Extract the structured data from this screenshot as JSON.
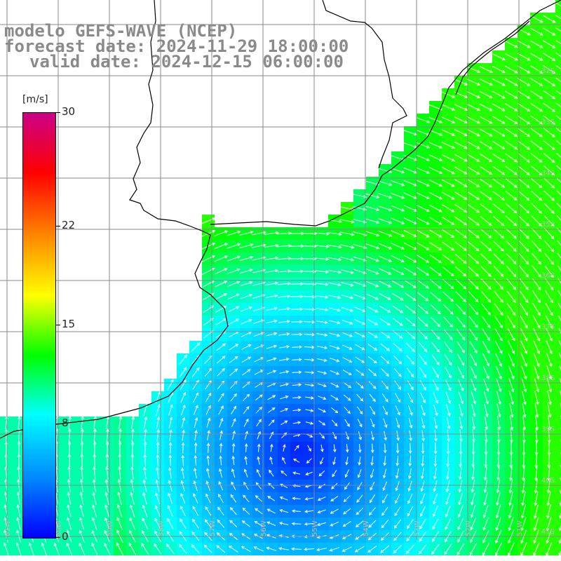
{
  "header": {
    "line1": "modelo GEFS-WAVE (NCEP)",
    "line2": "forecast date: 2024-11-29 18:00:00",
    "line3": "valid date: 2024-12-15 06:00:00"
  },
  "colorbar": {
    "unit": "[m/s]",
    "ticks": [
      {
        "label": "30",
        "value": 30
      },
      {
        "label": "22",
        "value": 22
      },
      {
        "label": "15",
        "value": 15
      },
      {
        "label": "8",
        "value": 8
      },
      {
        "label": "0",
        "value": 0
      }
    ],
    "stops": [
      "#0000ff",
      "#0088ff",
      "#00ffff",
      "#00ff00",
      "#ffff00",
      "#ff8800",
      "#ff0000",
      "#cc0088"
    ]
  },
  "lat_labels": [
    "32S",
    "33S",
    "34S",
    "35S",
    "36S",
    "37S",
    "38S",
    "39S",
    "40S",
    "41S"
  ],
  "lon_labels": [
    "61W",
    "60W",
    "59W",
    "58W",
    "57W",
    "56W",
    "55W",
    "54W",
    "53W",
    "52W",
    "51W"
  ],
  "colors": {
    "land": "#ffffff",
    "grid": "#888888",
    "coast": "#000000",
    "arrow": "#ffffff"
  }
}
